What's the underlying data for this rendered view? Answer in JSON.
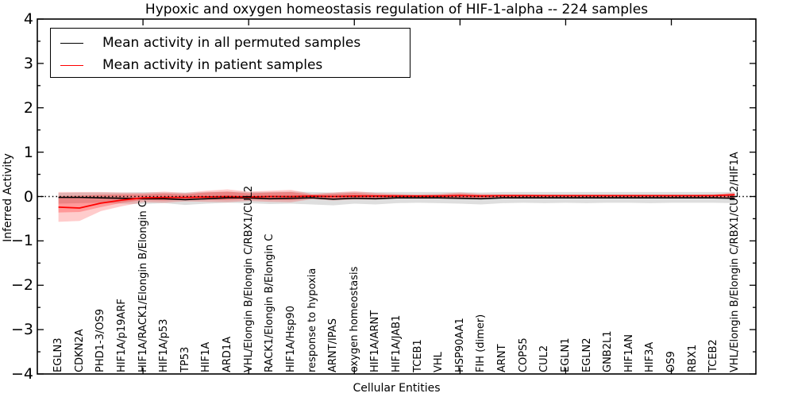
{
  "title": "Hypoxic and oxygen homeostasis regulation of HIF-1-alpha -- 224 samples",
  "axes": {
    "ylabel": "Inferred Activity",
    "xlabel": "Cellular Entities",
    "ylim": [
      -4,
      4
    ],
    "y_ticks": [
      4,
      3,
      2,
      1,
      0,
      -1,
      -2,
      -3,
      -4
    ],
    "y_tick_labels": [
      "4",
      "3",
      "2",
      "1",
      "0",
      "−1",
      "−2",
      "−3",
      "−4"
    ],
    "x_major_tick_positions": [
      5,
      10,
      15,
      20,
      25,
      30
    ],
    "grid": false
  },
  "legend": {
    "position": "upper-left",
    "entries": [
      {
        "label": "Mean activity in all permuted samples",
        "color": "#000000"
      },
      {
        "label": "Mean activity in patient samples",
        "color": "#ff0000"
      }
    ]
  },
  "colors": {
    "permuted_line": "#000000",
    "patient_line": "#ff0000",
    "permuted_band": "#000000",
    "patient_band": "#ff0000",
    "reference_line": "#000000",
    "spine": "#000000"
  },
  "chart_data": {
    "type": "line",
    "title": "Hypoxic and oxygen homeostasis regulation of HIF-1-alpha -- 224 samples",
    "xlabel": "Cellular Entities",
    "ylabel": "Inferred Activity",
    "ylim": [
      -4,
      4
    ],
    "legend_position": "upper-left",
    "categories": [
      "EGLN3",
      "CDKN2A",
      "PHD1-3/OS9",
      "HIF1A/p19ARF",
      "HIF1A/RACK1/Elongin B/Elongin C",
      "HIF1A/p53",
      "TP53",
      "HIF1A",
      "ARD1A",
      "VHL/Elongin B/Elongin C/RBX1/CUL2",
      "RACK1/Elongin B/Elongin C",
      "HIF1A/Hsp90",
      "response to hypoxia",
      "ARNT/IPAS",
      "oxygen homeostasis",
      "HIF1A/ARNT",
      "HIF1A/JAB1",
      "TCEB1",
      "VHL",
      "HSP90AA1",
      "FIH (dimer)",
      "ARNT",
      "COPS5",
      "CUL2",
      "EGLN1",
      "EGLN2",
      "GNB2L1",
      "HIF1AN",
      "HIF3A",
      "OS9",
      "RBX1",
      "TCEB2",
      "VHL/Elongin B/Elongin C/RBX1/CUL2/HIF1A"
    ],
    "series": [
      {
        "name": "Mean activity in all permuted samples",
        "color": "#000000",
        "width": 1.6,
        "values": [
          -0.02,
          -0.02,
          -0.03,
          -0.04,
          -0.05,
          -0.05,
          -0.07,
          -0.05,
          -0.03,
          -0.03,
          -0.05,
          -0.04,
          -0.03,
          -0.06,
          -0.04,
          -0.05,
          -0.03,
          -0.03,
          -0.03,
          -0.04,
          -0.05,
          -0.03,
          -0.03,
          -0.03,
          -0.03,
          -0.03,
          -0.03,
          -0.03,
          -0.03,
          -0.03,
          -0.03,
          -0.03,
          -0.04
        ]
      },
      {
        "name": "Mean activity in patient samples",
        "color": "#ff0000",
        "width": 1.8,
        "values": [
          -0.24,
          -0.26,
          -0.15,
          -0.08,
          -0.03,
          -0.02,
          -0.02,
          -0.01,
          0.0,
          -0.01,
          0.0,
          0.0,
          0.01,
          0.0,
          0.01,
          0.01,
          0.01,
          0.01,
          0.01,
          0.02,
          0.01,
          0.02,
          0.02,
          0.02,
          0.02,
          0.02,
          0.02,
          0.02,
          0.02,
          0.02,
          0.02,
          0.02,
          0.04
        ]
      }
    ],
    "bands": [
      {
        "name": "permuted-samples-range",
        "color": "#000000",
        "opacity": 0.13,
        "upper": [
          0.08,
          0.09,
          0.09,
          0.09,
          0.1,
          0.09,
          0.09,
          0.1,
          0.11,
          0.1,
          0.1,
          0.11,
          0.1,
          0.09,
          0.1,
          0.1,
          0.1,
          0.1,
          0.1,
          0.1,
          0.09,
          0.1,
          0.1,
          0.1,
          0.1,
          0.1,
          0.1,
          0.1,
          0.1,
          0.1,
          0.1,
          0.1,
          0.1
        ],
        "lower": [
          -0.16,
          -0.15,
          -0.14,
          -0.16,
          -0.17,
          -0.15,
          -0.19,
          -0.16,
          -0.14,
          -0.15,
          -0.17,
          -0.16,
          -0.18,
          -0.2,
          -0.16,
          -0.18,
          -0.15,
          -0.14,
          -0.15,
          -0.16,
          -0.18,
          -0.15,
          -0.14,
          -0.15,
          -0.14,
          -0.15,
          -0.14,
          -0.14,
          -0.15,
          -0.14,
          -0.14,
          -0.14,
          -0.15
        ]
      },
      {
        "name": "patient-samples-range-outer",
        "color": "#ff0000",
        "opacity": 0.2,
        "upper": [
          0.1,
          0.1,
          0.1,
          0.09,
          0.08,
          0.11,
          0.08,
          0.13,
          0.16,
          0.11,
          0.13,
          0.15,
          0.06,
          0.09,
          0.12,
          0.08,
          0.06,
          0.05,
          0.06,
          0.09,
          0.06,
          0.05,
          0.05,
          0.04,
          0.04,
          0.04,
          0.04,
          0.04,
          0.04,
          0.04,
          0.04,
          0.05,
          0.09
        ],
        "lower": [
          -0.57,
          -0.55,
          -0.33,
          -0.22,
          -0.13,
          -0.14,
          -0.11,
          -0.12,
          -0.13,
          -0.1,
          -0.12,
          -0.13,
          -0.06,
          -0.09,
          -0.07,
          -0.07,
          -0.05,
          -0.05,
          -0.05,
          -0.06,
          -0.05,
          -0.04,
          -0.04,
          -0.04,
          -0.04,
          -0.04,
          -0.04,
          -0.04,
          -0.04,
          -0.04,
          -0.04,
          -0.04,
          -0.05
        ]
      },
      {
        "name": "patient-samples-range-inner",
        "color": "#ff0000",
        "opacity": 0.25,
        "upper": [
          0.01,
          0.02,
          0.04,
          0.05,
          0.05,
          0.07,
          0.05,
          0.09,
          0.11,
          0.07,
          0.09,
          0.1,
          0.04,
          0.06,
          0.08,
          0.05,
          0.04,
          0.03,
          0.04,
          0.06,
          0.04,
          0.03,
          0.03,
          0.03,
          0.03,
          0.03,
          0.03,
          0.03,
          0.03,
          0.03,
          0.03,
          0.03,
          0.06
        ],
        "lower": [
          -0.36,
          -0.35,
          -0.24,
          -0.14,
          -0.08,
          -0.09,
          -0.07,
          -0.07,
          -0.08,
          -0.06,
          -0.07,
          -0.08,
          -0.04,
          -0.05,
          -0.04,
          -0.04,
          -0.03,
          -0.03,
          -0.03,
          -0.04,
          -0.03,
          -0.03,
          -0.03,
          -0.02,
          -0.02,
          -0.02,
          -0.02,
          -0.02,
          -0.02,
          -0.02,
          -0.02,
          -0.03,
          -0.03
        ]
      }
    ],
    "reference_line": {
      "y": 0,
      "style": "dotted",
      "color": "#000000"
    }
  }
}
